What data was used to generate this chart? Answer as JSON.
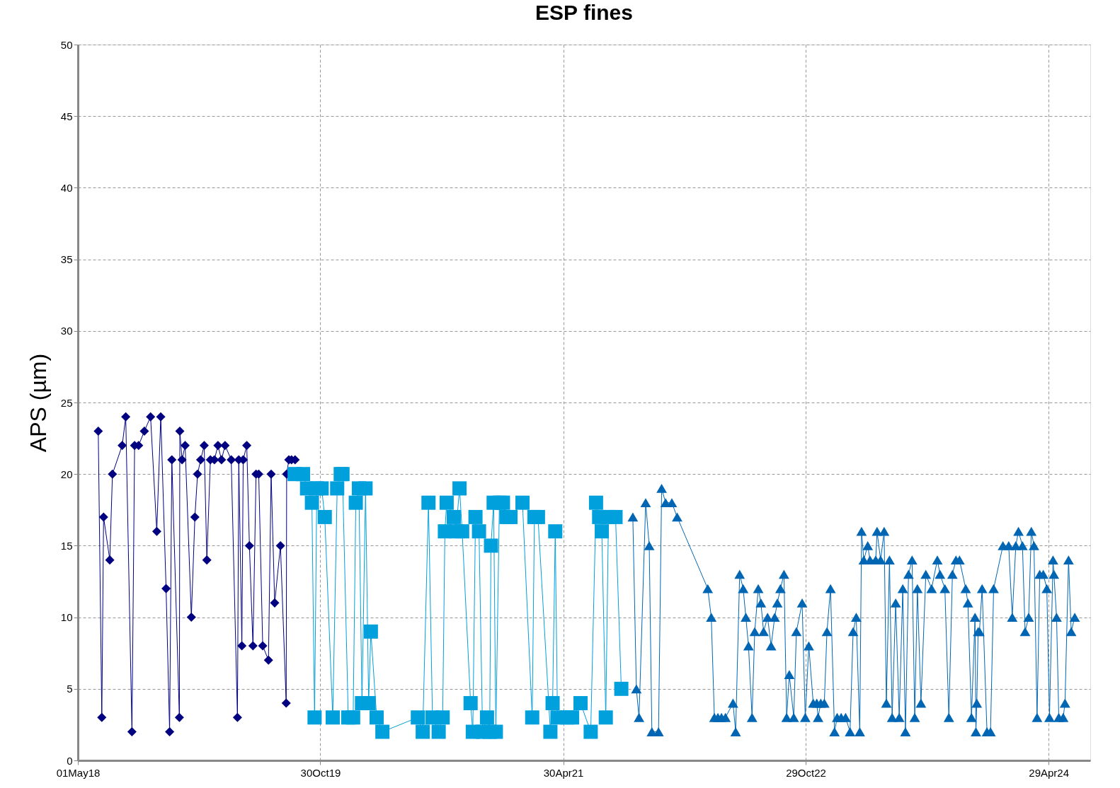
{
  "chart_data": {
    "type": "line",
    "title": "ESP fines",
    "ylabel": "APS (µm)",
    "xlim": [
      "2018-05-01",
      "2024-08-01"
    ],
    "xticks": [
      {
        "value": "2018-05-01",
        "label": "01May18"
      },
      {
        "value": "2019-10-30",
        "label": "30Oct19"
      },
      {
        "value": "2021-04-30",
        "label": "30Apr21"
      },
      {
        "value": "2022-10-29",
        "label": "29Oct22"
      },
      {
        "value": "2024-04-29",
        "label": "29Apr24"
      }
    ],
    "ylim": [
      0,
      50
    ],
    "yticks": [
      0,
      5,
      10,
      15,
      20,
      25,
      30,
      35,
      40,
      45,
      50
    ],
    "grid": true,
    "legend": false,
    "line_style": "solid",
    "series": [
      {
        "color": "#000080",
        "marker": "diamond",
        "x": [
          "2018-06-16",
          "2018-06-24",
          "2018-06-28",
          "2018-07-12",
          "2018-07-18",
          "2018-08-09",
          "2018-08-17",
          "2018-08-31",
          "2018-09-06",
          "2018-09-15",
          "2018-09-28",
          "2018-10-12",
          "2018-10-26",
          "2018-11-04",
          "2018-11-16",
          "2018-11-24",
          "2018-11-29",
          "2018-12-16",
          "2018-12-17",
          "2018-12-22",
          "2018-12-29",
          "2019-01-12",
          "2019-01-20",
          "2019-01-26",
          "2019-02-02",
          "2019-02-10",
          "2019-02-16",
          "2019-02-24",
          "2019-03-05",
          "2019-03-13",
          "2019-03-21",
          "2019-03-29",
          "2019-04-12",
          "2019-04-26",
          "2019-04-29",
          "2019-05-06",
          "2019-05-09",
          "2019-05-17",
          "2019-05-23",
          "2019-05-31",
          "2019-06-07",
          "2019-06-13",
          "2019-06-22",
          "2019-07-05",
          "2019-07-11",
          "2019-07-19",
          "2019-08-01",
          "2019-08-14",
          "2019-08-15",
          "2019-08-20",
          "2019-08-26",
          "2019-09-03"
        ],
        "values": [
          23,
          3,
          17,
          14,
          20,
          22,
          24,
          2,
          22,
          22,
          23,
          24,
          16,
          24,
          12,
          2,
          21,
          3,
          23,
          21,
          22,
          10,
          17,
          20,
          21,
          22,
          14,
          21,
          21,
          22,
          21,
          22,
          21,
          3,
          21,
          8,
          21,
          22,
          15,
          8,
          20,
          20,
          8,
          7,
          20,
          11,
          15,
          4,
          20,
          21,
          21,
          21
        ]
      },
      {
        "color": "#00a0dc",
        "marker": "square",
        "x": [
          "2019-09-02",
          "2019-09-21",
          "2019-09-30",
          "2019-10-11",
          "2019-10-17",
          "2019-10-22",
          "2019-11-02",
          "2019-11-09",
          "2019-11-27",
          "2019-12-07",
          "2019-12-15",
          "2019-12-19",
          "2020-01-01",
          "2020-01-12",
          "2020-01-18",
          "2020-01-25",
          "2020-02-01",
          "2020-02-09",
          "2020-02-16",
          "2020-02-21",
          "2020-03-05",
          "2020-03-18",
          "2020-06-06",
          "2020-06-17",
          "2020-06-30",
          "2020-07-09",
          "2020-07-23",
          "2020-08-01",
          "2020-08-06",
          "2020-08-10",
          "2020-08-26",
          "2020-08-31",
          "2020-09-08",
          "2020-09-14",
          "2020-10-03",
          "2020-10-08",
          "2020-10-14",
          "2020-10-22",
          "2020-10-30",
          "2020-11-09",
          "2020-11-15",
          "2020-11-18",
          "2020-11-24",
          "2020-11-29",
          "2020-12-07",
          "2020-12-15",
          "2020-12-23",
          "2021-01-01",
          "2021-01-28",
          "2021-02-19",
          "2021-02-24",
          "2021-03-04",
          "2021-04-01",
          "2021-04-06",
          "2021-04-12",
          "2021-04-17",
          "2021-05-09",
          "2021-05-20",
          "2021-06-08",
          "2021-07-01",
          "2021-07-13",
          "2021-07-20",
          "2021-07-26",
          "2021-08-04",
          "2021-08-10",
          "2021-08-26",
          "2021-09-08"
        ],
        "values": [
          20,
          20,
          19,
          18,
          3,
          19,
          19,
          17,
          3,
          19,
          20,
          20,
          3,
          3,
          18,
          19,
          4,
          19,
          4,
          9,
          3,
          2,
          3,
          2,
          18,
          3,
          2,
          3,
          16,
          18,
          17,
          16,
          19,
          16,
          4,
          2,
          17,
          16,
          2,
          3,
          2,
          15,
          18,
          2,
          18,
          18,
          17,
          17,
          18,
          3,
          17,
          17,
          2,
          4,
          16,
          3,
          3,
          3,
          4,
          2,
          18,
          17,
          16,
          3,
          17,
          17,
          5
        ]
      },
      {
        "color": "#0066b3",
        "marker": "triangle",
        "x": [
          "2021-10-04",
          "2021-10-12",
          "2021-10-18",
          "2021-11-02",
          "2021-11-10",
          "2021-11-16",
          "2021-12-01",
          "2021-12-08",
          "2021-12-17",
          "2021-12-31",
          "2022-01-12",
          "2022-03-22",
          "2022-03-30",
          "2022-04-06",
          "2022-04-14",
          "2022-04-22",
          "2022-05-01",
          "2022-05-18",
          "2022-05-24",
          "2022-06-02",
          "2022-06-10",
          "2022-06-16",
          "2022-06-22",
          "2022-06-30",
          "2022-07-06",
          "2022-07-14",
          "2022-07-20",
          "2022-07-26",
          "2022-08-04",
          "2022-08-12",
          "2022-08-20",
          "2022-08-26",
          "2022-09-02",
          "2022-09-10",
          "2022-09-16",
          "2022-09-22",
          "2022-10-02",
          "2022-10-08",
          "2022-10-21",
          "2022-10-28",
          "2022-11-05",
          "2022-11-15",
          "2022-11-23",
          "2022-11-26",
          "2022-12-02",
          "2022-12-10",
          "2022-12-16",
          "2022-12-24",
          "2023-01-02",
          "2023-01-08",
          "2023-01-17",
          "2023-01-27",
          "2023-02-06",
          "2023-02-13",
          "2023-02-20",
          "2023-02-28",
          "2023-03-04",
          "2023-03-09",
          "2023-03-18",
          "2023-03-23",
          "2023-04-05",
          "2023-04-08",
          "2023-04-16",
          "2023-04-24",
          "2023-04-29",
          "2023-05-06",
          "2023-05-12",
          "2023-05-20",
          "2023-05-28",
          "2023-06-05",
          "2023-06-11",
          "2023-06-18",
          "2023-06-26",
          "2023-07-02",
          "2023-07-08",
          "2023-07-16",
          "2023-07-27",
          "2023-08-09",
          "2023-08-22",
          "2023-08-28",
          "2023-09-08",
          "2023-09-17",
          "2023-09-25",
          "2023-10-03",
          "2023-10-11",
          "2023-10-25",
          "2023-10-30",
          "2023-11-07",
          "2023-11-15",
          "2023-11-17",
          "2023-11-19",
          "2023-11-22",
          "2023-11-25",
          "2023-12-01",
          "2023-12-12",
          "2023-12-20",
          "2023-12-27",
          "2024-01-17",
          "2024-01-30",
          "2024-02-07",
          "2024-02-15",
          "2024-02-21",
          "2024-03-01",
          "2024-03-07",
          "2024-03-15",
          "2024-03-21",
          "2024-03-27",
          "2024-04-03",
          "2024-04-09",
          "2024-04-17",
          "2024-04-25",
          "2024-05-01",
          "2024-05-09",
          "2024-05-11",
          "2024-05-17",
          "2024-05-22",
          "2024-06-01",
          "2024-06-05",
          "2024-06-13",
          "2024-06-19",
          "2024-06-27"
        ],
        "values": [
          17,
          5,
          3,
          18,
          15,
          2,
          2,
          19,
          18,
          18,
          17,
          12,
          10,
          3,
          3,
          3,
          3,
          4,
          2,
          13,
          12,
          10,
          8,
          3,
          9,
          12,
          11,
          9,
          10,
          8,
          10,
          11,
          12,
          13,
          3,
          6,
          3,
          9,
          11,
          3,
          8,
          4,
          4,
          3,
          4,
          4,
          9,
          12,
          2,
          3,
          3,
          3,
          2,
          9,
          10,
          2,
          16,
          14,
          15,
          14,
          14,
          16,
          14,
          16,
          4,
          14,
          3,
          11,
          3,
          12,
          2,
          13,
          14,
          3,
          12,
          4,
          13,
          12,
          14,
          13,
          12,
          3,
          13,
          14,
          14,
          12,
          11,
          3,
          10,
          2,
          4,
          9,
          9,
          12,
          2,
          2,
          12,
          15,
          15,
          10,
          15,
          16,
          15,
          9,
          10,
          16,
          15,
          3,
          13,
          13,
          12,
          3,
          14,
          13,
          10,
          3,
          3,
          4,
          14,
          9,
          10
        ]
      }
    ]
  }
}
